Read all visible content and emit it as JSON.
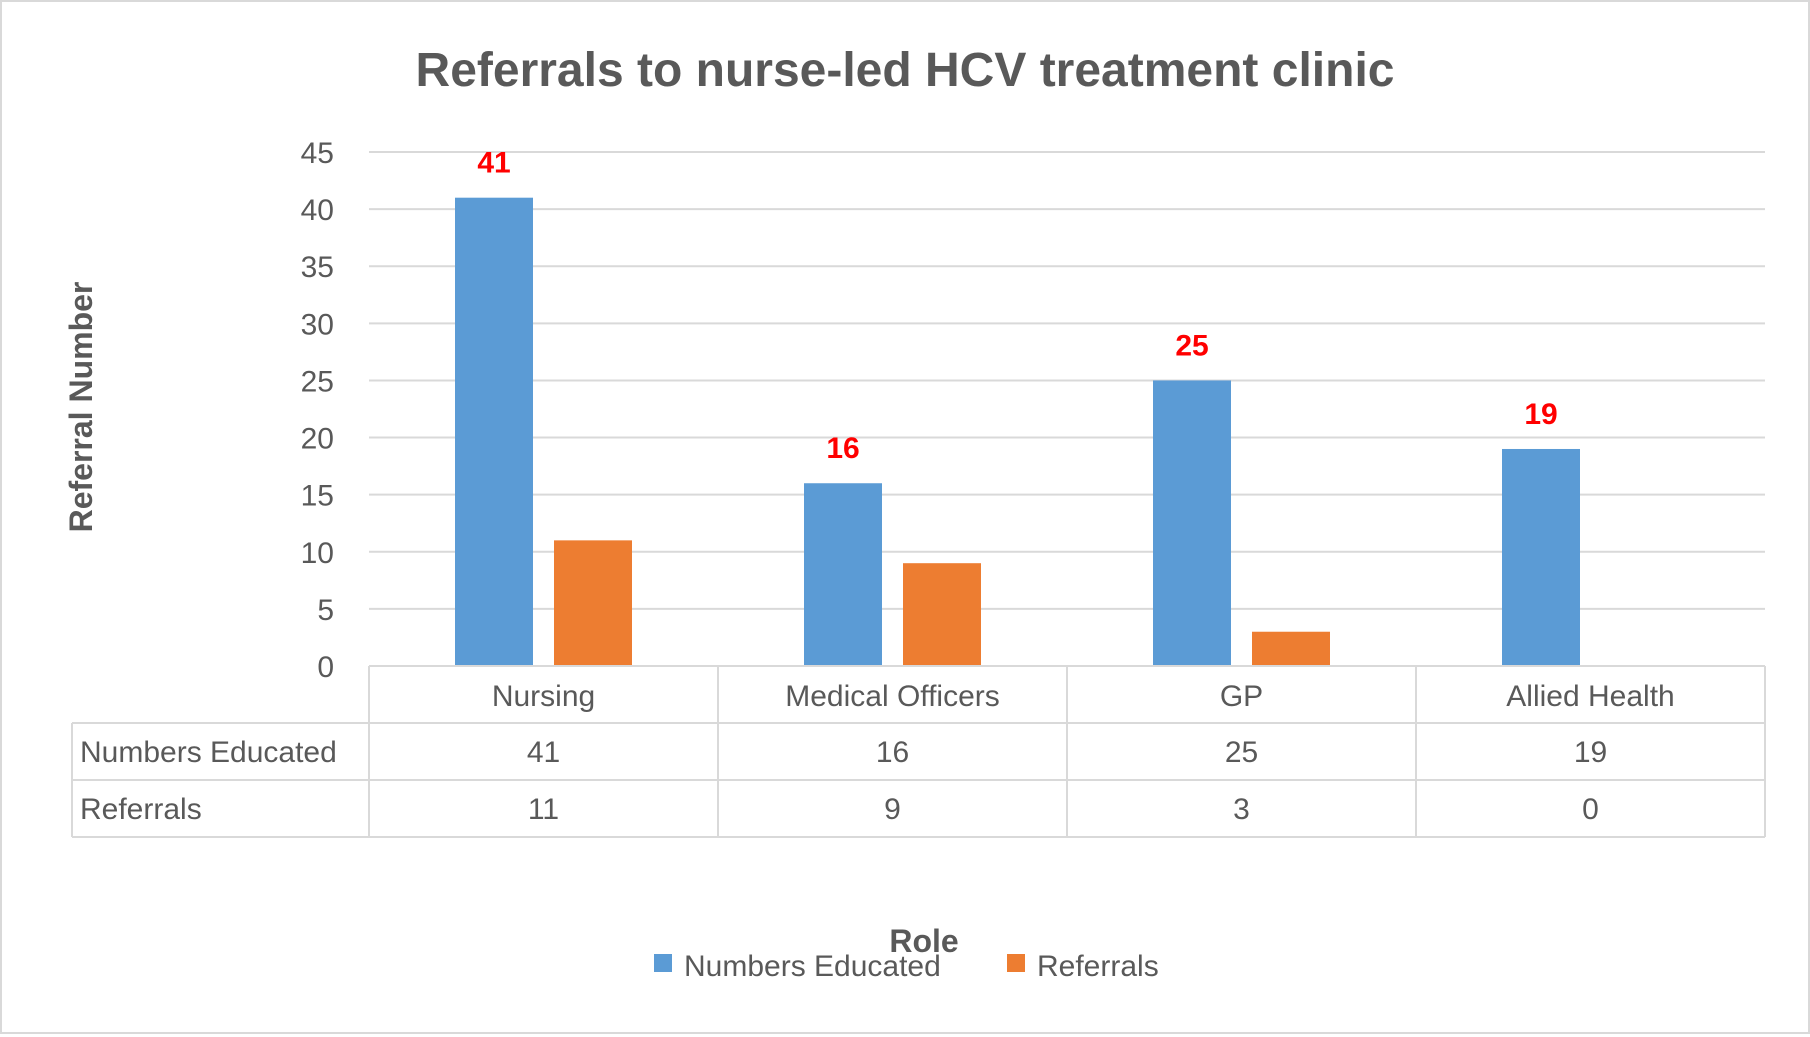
{
  "chart_data": {
    "type": "bar",
    "title": "Referrals to nurse-led HCV treatment clinic",
    "xlabel": "Role",
    "ylabel": "Referral Number",
    "categories": [
      "Nursing",
      "Medical Officers",
      "GP",
      "Allied Health"
    ],
    "series": [
      {
        "name": "Numbers Educated",
        "values": [
          41,
          16,
          25,
          19
        ],
        "color": "#5b9bd5",
        "data_labels": [
          "41",
          "16",
          "25",
          "19"
        ]
      },
      {
        "name": "Referrals",
        "values": [
          11,
          9,
          3,
          0
        ],
        "color": "#ed7d31"
      }
    ],
    "ylim": [
      0,
      45
    ],
    "yticks": [
      0,
      5,
      10,
      15,
      20,
      25,
      30,
      35,
      40,
      45
    ],
    "grid": true,
    "legend": "bottom",
    "data_label_color": "#ff0000",
    "data_table": {
      "rows": [
        {
          "label": "Numbers Educated",
          "cells": [
            "41",
            "16",
            "25",
            "19"
          ]
        },
        {
          "label": "Referrals",
          "cells": [
            "11",
            "9",
            "3",
            "0"
          ]
        }
      ]
    }
  }
}
